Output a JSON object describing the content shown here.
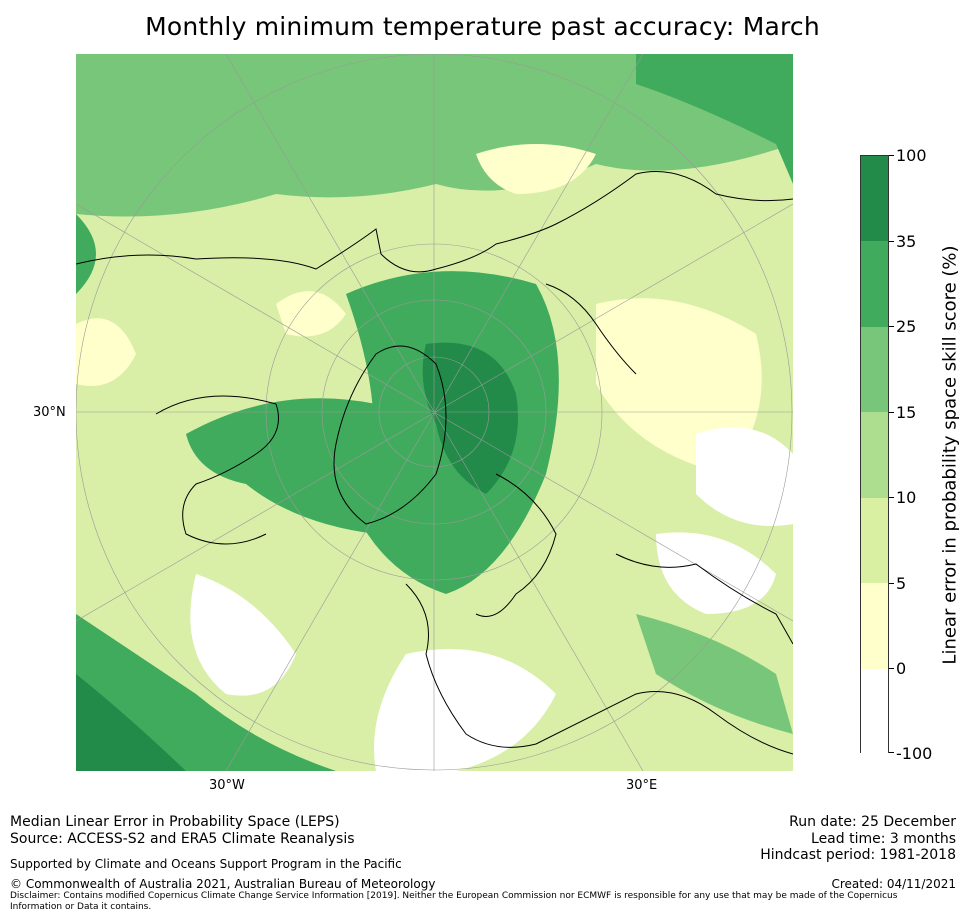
{
  "title": "Monthly minimum temperature past accuracy: March",
  "map": {
    "lat_label": "30°N",
    "lon_labels": [
      "30°W",
      "30°E"
    ],
    "projection": "north polar stereographic",
    "colors": {
      "land_outline": "#000000",
      "graticule": "#9a9a9a"
    }
  },
  "colorbar": {
    "title": "Linear error in probability space skill score (%)",
    "ticks": [
      "100",
      "35",
      "25",
      "15",
      "10",
      "5",
      "0",
      "-100"
    ],
    "bins": [
      {
        "range": "35 to 100",
        "color": "#228b4a"
      },
      {
        "range": "25 to 35",
        "color": "#41ab5d"
      },
      {
        "range": "15 to 25",
        "color": "#78c679"
      },
      {
        "range": "10 to 15",
        "color": "#addd8e"
      },
      {
        "range": "5 to 10",
        "color": "#d9f0a3"
      },
      {
        "range": "0 to 5",
        "color": "#ffffcc"
      },
      {
        "range": "-100 to 0",
        "color": "#ffffff"
      }
    ]
  },
  "footer": {
    "method": "Median Linear Error in Probability Space (LEPS)",
    "source": "Source: ACCESS-S2 and ERA5 Climate Reanalysis",
    "support": "Supported by Climate and Oceans Support Program in the Pacific",
    "copyright": "© Commonwealth of Australia 2021, Australian Bureau of Meteorology",
    "disclaimer": "Disclaimer: Contains modified Copernicus Climate Change Service Information [2019]. Neither the European Commission nor ECMWF is responsible for any use that may be made of the Copernicus Information or Data it contains.",
    "run_date": "Run date: 25 December",
    "lead_time": "Lead time: 3 months",
    "hindcast": "Hindcast period: 1981-2018",
    "created": "Created: 04/11/2021"
  }
}
